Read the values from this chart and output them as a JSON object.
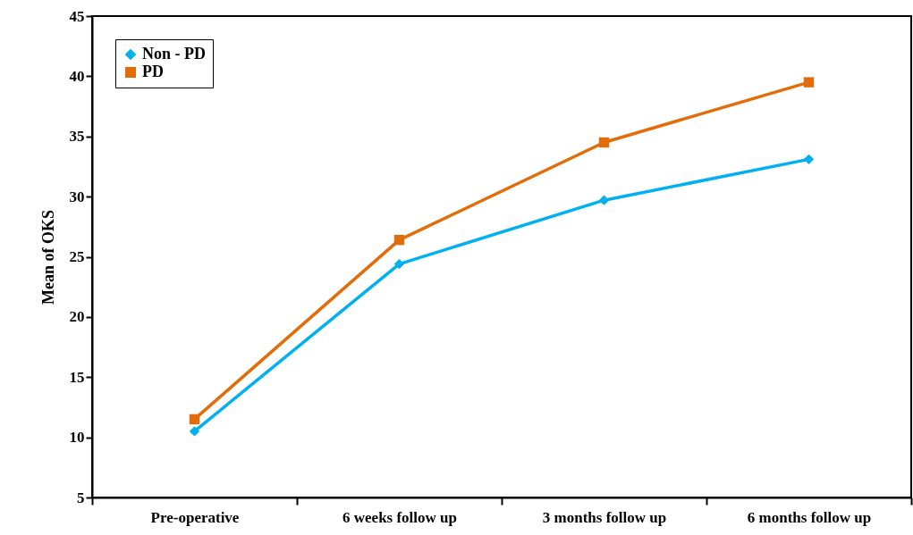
{
  "chart_data": {
    "type": "line",
    "ylabel": "Mean of OKS",
    "categories": [
      "Pre-operative",
      "6 weeks follow up",
      "3 months follow up",
      "6 months follow up"
    ],
    "series": [
      {
        "name": "Non - PD",
        "color": "#00b0f0",
        "marker": "diamond",
        "values": [
          10.5,
          24.4,
          29.7,
          33.1
        ]
      },
      {
        "name": "PD",
        "color": "#e36c09",
        "marker": "square",
        "values": [
          11.5,
          26.4,
          34.5,
          39.5
        ]
      }
    ],
    "ylim": [
      5,
      45
    ],
    "yticks": [
      5,
      10,
      15,
      20,
      25,
      30,
      35,
      40,
      45
    ],
    "grid": false,
    "legend": "top left",
    "line_style": "solid"
  }
}
